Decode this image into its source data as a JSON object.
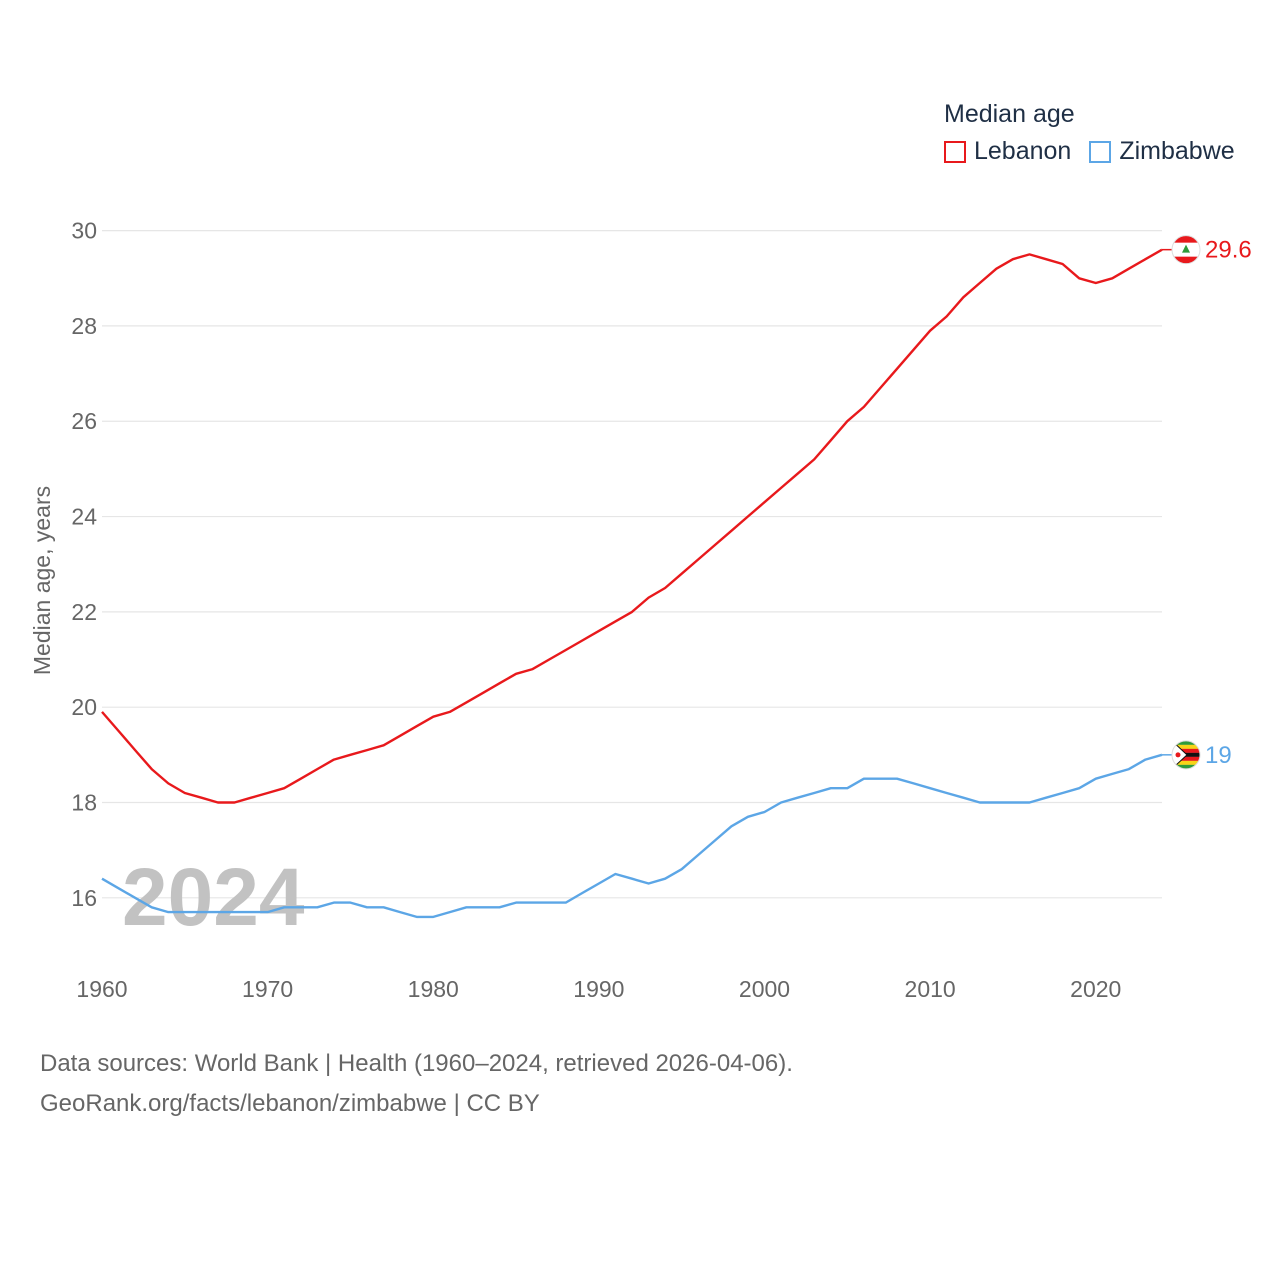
{
  "legend": {
    "title": "Median age",
    "items": [
      {
        "label": "Lebanon",
        "color": "#e8191c"
      },
      {
        "label": "Zimbabwe",
        "color": "#5ca6e6"
      }
    ]
  },
  "footer": {
    "line1": "Data sources: World Bank | Health (1960–2024, retrieved 2026-04-06).",
    "line2": "GeoRank.org/facts/lebanon/zimbabwe | CC BY"
  },
  "chart_data": {
    "type": "line",
    "ylabel": "Median age, years",
    "xlabel": "",
    "xlim": [
      1960,
      2024
    ],
    "ylim": [
      14.8,
      30.6
    ],
    "year_label": "2024",
    "x_ticks": [
      1960,
      1970,
      1980,
      1990,
      2000,
      2010,
      2020
    ],
    "y_ticks": [
      16,
      18,
      20,
      22,
      24,
      26,
      28,
      30
    ],
    "x": [
      1960,
      1961,
      1962,
      1963,
      1964,
      1965,
      1966,
      1967,
      1968,
      1969,
      1970,
      1971,
      1972,
      1973,
      1974,
      1975,
      1976,
      1977,
      1978,
      1979,
      1980,
      1981,
      1982,
      1983,
      1984,
      1985,
      1986,
      1987,
      1988,
      1989,
      1990,
      1991,
      1992,
      1993,
      1994,
      1995,
      1996,
      1997,
      1998,
      1999,
      2000,
      2001,
      2002,
      2003,
      2004,
      2005,
      2006,
      2007,
      2008,
      2009,
      2010,
      2011,
      2012,
      2013,
      2014,
      2015,
      2016,
      2017,
      2018,
      2019,
      2020,
      2021,
      2022,
      2023,
      2024
    ],
    "series": [
      {
        "name": "Lebanon",
        "color": "#e8191c",
        "end_label": "29.6",
        "values": [
          19.9,
          19.5,
          19.1,
          18.7,
          18.4,
          18.2,
          18.1,
          18.0,
          18.0,
          18.1,
          18.2,
          18.3,
          18.5,
          18.7,
          18.9,
          19.0,
          19.1,
          19.2,
          19.4,
          19.6,
          19.8,
          19.9,
          20.1,
          20.3,
          20.5,
          20.7,
          20.8,
          21.0,
          21.2,
          21.4,
          21.6,
          21.8,
          22.0,
          22.3,
          22.5,
          22.8,
          23.1,
          23.4,
          23.7,
          24.0,
          24.3,
          24.6,
          24.9,
          25.2,
          25.6,
          26.0,
          26.3,
          26.7,
          27.1,
          27.5,
          27.9,
          28.2,
          28.6,
          28.9,
          29.2,
          29.4,
          29.5,
          29.4,
          29.3,
          29.0,
          28.9,
          29.0,
          29.2,
          29.4,
          29.6
        ]
      },
      {
        "name": "Zimbabwe",
        "color": "#5ca6e6",
        "end_label": "19",
        "values": [
          16.4,
          16.2,
          16.0,
          15.8,
          15.7,
          15.7,
          15.7,
          15.7,
          15.7,
          15.7,
          15.7,
          15.8,
          15.8,
          15.8,
          15.9,
          15.9,
          15.8,
          15.8,
          15.7,
          15.6,
          15.6,
          15.7,
          15.8,
          15.8,
          15.8,
          15.9,
          15.9,
          15.9,
          15.9,
          16.1,
          16.3,
          16.5,
          16.4,
          16.3,
          16.4,
          16.6,
          16.9,
          17.2,
          17.5,
          17.7,
          17.8,
          18.0,
          18.1,
          18.2,
          18.3,
          18.3,
          18.5,
          18.5,
          18.5,
          18.4,
          18.3,
          18.2,
          18.1,
          18.0,
          18.0,
          18.0,
          18.0,
          18.1,
          18.2,
          18.3,
          18.5,
          18.6,
          18.7,
          18.9,
          19.0
        ]
      }
    ]
  }
}
